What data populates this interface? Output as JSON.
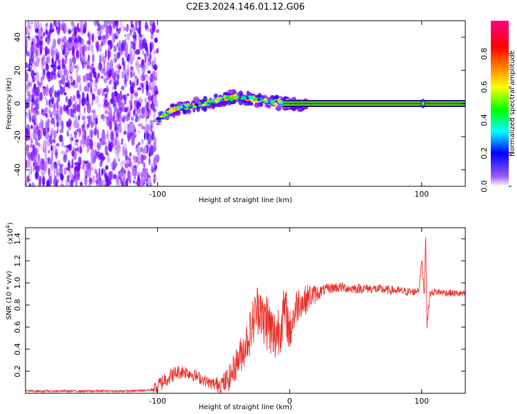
{
  "figure": {
    "title": "C2E3.2024.146.01.12.G06"
  },
  "chart_data": [
    {
      "type": "heatmap",
      "title": "C2E3.2024.146.01.12.G06",
      "xlabel": "Height of straight line (km)",
      "ylabel": "Frequency (Hz)",
      "xlim": [
        -200,
        133
      ],
      "ylim": [
        -50,
        50
      ],
      "x_ticks": [
        -100,
        0,
        100
      ],
      "x_tick_labels": [
        "-100",
        "",
        "100"
      ],
      "y_ticks": [
        -40,
        -20,
        0,
        20,
        40
      ],
      "y_tick_labels": [
        "-40",
        "-20",
        "0",
        "20",
        "40"
      ],
      "colorbar": {
        "label": "Normalized spectral amplitude",
        "range": [
          0,
          1
        ],
        "ticks": [
          0.0,
          0.2,
          0.4,
          0.6,
          0.8
        ],
        "tick_labels": [
          "0.0",
          "0.2",
          "0.4",
          "0.6",
          "0.8"
        ],
        "colormap": [
          "#ffffff",
          "#7f00ff",
          "#0000ff",
          "#00ffff",
          "#00ff00",
          "#ffff00",
          "#ff7f00",
          "#ff0000",
          "#ff007f"
        ]
      },
      "regions": [
        {
          "name": "noise",
          "x_range": [
            -200,
            -100
          ],
          "freq_range": [
            -50,
            50
          ],
          "amplitude": 0.12
        },
        {
          "name": "signal",
          "x_range": [
            -100,
            13
          ],
          "freq_center_path": [
            [
              -100,
              -10
            ],
            [
              -92,
              -5
            ],
            [
              -80,
              -2
            ],
            [
              -65,
              0
            ],
            [
              -50,
              3
            ],
            [
              -40,
              4
            ],
            [
              -30,
              3
            ],
            [
              -20,
              1.5
            ],
            [
              -10,
              0.5
            ],
            [
              0,
              0
            ],
            [
              13,
              0
            ]
          ],
          "amplitude": 0.55
        },
        {
          "name": "line",
          "x_range": [
            -5,
            133
          ],
          "freq": 0,
          "amplitude": 1.0
        }
      ],
      "grid": false
    },
    {
      "type": "line",
      "xlabel": "Height of straight line (km)",
      "ylabel": "SNR (10 * v/v)",
      "y_scale_label": "(x10",
      "y_scale_exponent": "4",
      "y_scale_suffix": ")",
      "xlim": [
        -200,
        133
      ],
      "ylim": [
        0,
        1.5
      ],
      "x_ticks": [
        -100,
        0,
        100
      ],
      "x_tick_labels": [
        "-100",
        "0",
        "100"
      ],
      "y_ticks": [
        0.2,
        0.4,
        0.6,
        0.8,
        1.0,
        1.2,
        1.4
      ],
      "y_tick_labels": [
        "0.2",
        "0.4",
        "0.6",
        "0.8",
        "1.0",
        "1.2",
        "1.4"
      ],
      "series": [
        {
          "color": "#e8302a",
          "x": [
            -200,
            -180,
            -160,
            -140,
            -120,
            -105,
            -100,
            -95,
            -90,
            -85,
            -80,
            -75,
            -70,
            -65,
            -60,
            -55,
            -50,
            -45,
            -40,
            -35,
            -30,
            -25,
            -22,
            -20,
            -18,
            -15,
            -12,
            -10,
            -7,
            -5,
            -3,
            0,
            3,
            5,
            8,
            10,
            15,
            20,
            25,
            30,
            35,
            40,
            45,
            50,
            60,
            70,
            80,
            90,
            95,
            98,
            100,
            102,
            103,
            104,
            106,
            110,
            120,
            133
          ],
          "y": [
            0.02,
            0.02,
            0.02,
            0.02,
            0.02,
            0.03,
            0.06,
            0.12,
            0.16,
            0.19,
            0.2,
            0.18,
            0.15,
            0.12,
            0.09,
            0.08,
            0.09,
            0.15,
            0.28,
            0.4,
            0.55,
            0.75,
            0.82,
            0.6,
            0.7,
            0.58,
            0.5,
            0.55,
            0.62,
            0.7,
            0.75,
            0.55,
            0.7,
            0.78,
            0.85,
            0.82,
            0.88,
            0.9,
            0.93,
            0.95,
            0.96,
            0.96,
            0.95,
            0.95,
            0.95,
            0.94,
            0.93,
            0.92,
            0.92,
            0.95,
            1.2,
            0.9,
            1.45,
            0.6,
            0.9,
            0.92,
            0.91,
            0.9
          ],
          "noise_amplitude_profile": [
            [
              -200,
              0.01
            ],
            [
              -105,
              0.01
            ],
            [
              -100,
              0.08
            ],
            [
              -60,
              0.05
            ],
            [
              -40,
              0.15
            ],
            [
              -15,
              0.3
            ],
            [
              0,
              0.2
            ],
            [
              15,
              0.12
            ],
            [
              25,
              0.05
            ],
            [
              133,
              0.03
            ]
          ]
        }
      ],
      "grid": false
    }
  ]
}
